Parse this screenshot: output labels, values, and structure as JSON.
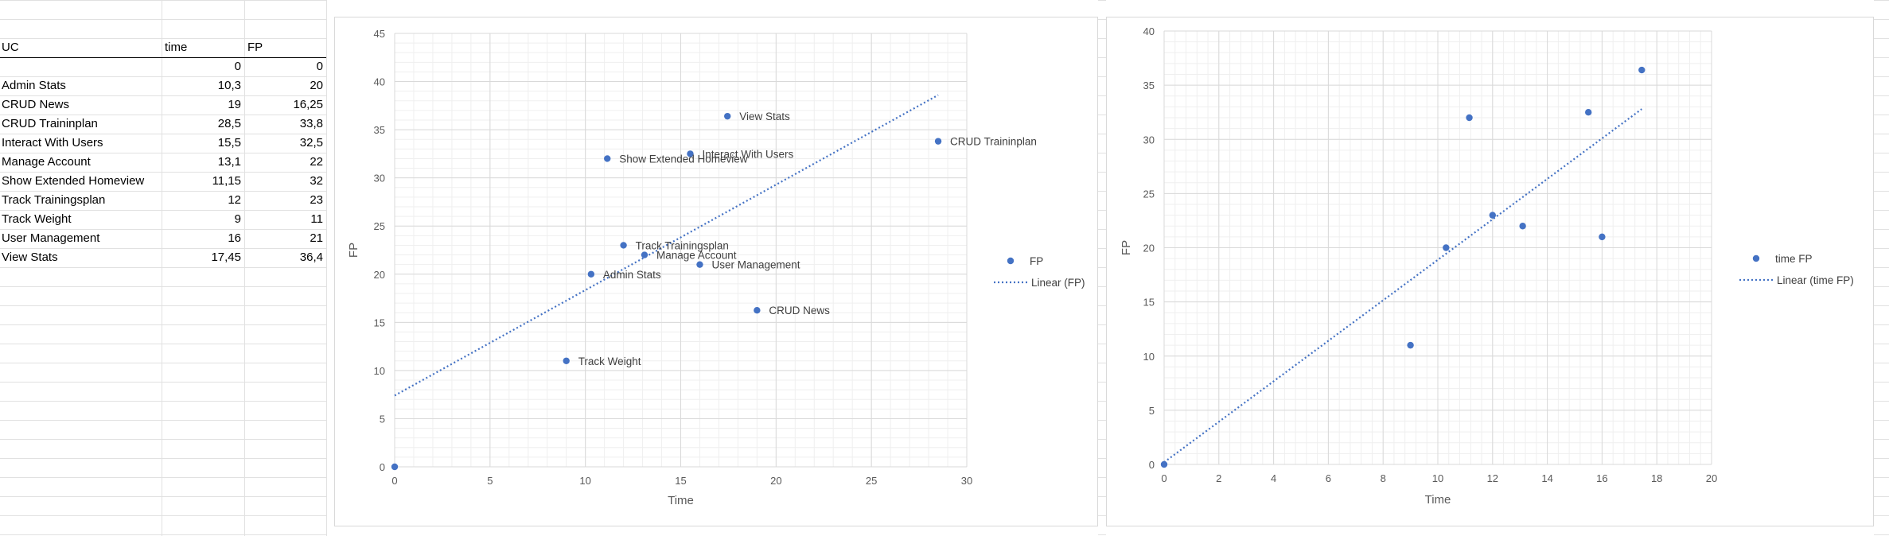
{
  "table": {
    "headers": [
      "UC",
      "time",
      "FP"
    ],
    "rows": [
      [
        "",
        "0",
        "0"
      ],
      [
        "Admin Stats",
        "10,3",
        "20"
      ],
      [
        "CRUD News",
        "19",
        "16,25"
      ],
      [
        "CRUD Traininplan",
        "28,5",
        "33,8"
      ],
      [
        "Interact With Users",
        "15,5",
        "32,5"
      ],
      [
        "Manage Account",
        "13,1",
        "22"
      ],
      [
        "Show Extended Homeview",
        "11,15",
        "32"
      ],
      [
        "Track Trainingsplan",
        "12",
        "23"
      ],
      [
        "Track Weight",
        "9",
        "11"
      ],
      [
        "User Management",
        "16",
        "21"
      ],
      [
        "View Stats",
        "17,45",
        "36,4"
      ]
    ]
  },
  "colors": {
    "series": "#4472c4",
    "grid_major": "#d9d9d9",
    "grid_minor": "#efefef",
    "axis_text": "#595959",
    "sheet_grid": "#e1e1e1"
  },
  "chart_data": [
    {
      "type": "scatter",
      "title": "",
      "xlabel": "Time",
      "ylabel": "FP",
      "xlim": [
        0,
        30
      ],
      "ylim": [
        0,
        45
      ],
      "xticks": [
        "0",
        "5",
        "10",
        "15",
        "20",
        "25",
        "30"
      ],
      "yticks": [
        "0",
        "5",
        "10",
        "15",
        "20",
        "25",
        "30",
        "35",
        "40",
        "45"
      ],
      "grid": true,
      "legend_position": "right",
      "legend": [
        "FP",
        "Linear (FP)"
      ],
      "series": [
        {
          "name": "FP",
          "points": [
            {
              "x": 0,
              "y": 0,
              "label": ""
            },
            {
              "x": 10.3,
              "y": 20,
              "label": "Admin Stats"
            },
            {
              "x": 19,
              "y": 16.25,
              "label": "CRUD News"
            },
            {
              "x": 28.5,
              "y": 33.8,
              "label": "CRUD Traininplan"
            },
            {
              "x": 15.5,
              "y": 32.5,
              "label": "Interact With Users"
            },
            {
              "x": 13.1,
              "y": 22,
              "label": "Manage Account"
            },
            {
              "x": 11.15,
              "y": 32,
              "label": "Show Extended Homeview"
            },
            {
              "x": 12,
              "y": 23,
              "label": "Track Trainingsplan"
            },
            {
              "x": 9,
              "y": 11,
              "label": "Track Weight"
            },
            {
              "x": 16,
              "y": 21,
              "label": "User Management"
            },
            {
              "x": 17.45,
              "y": 36.4,
              "label": "View Stats"
            }
          ]
        }
      ],
      "trendline": {
        "name": "Linear (FP)",
        "x0": 0,
        "y0": 7.4,
        "x1": 28.5,
        "y1": 38.6
      }
    },
    {
      "type": "scatter",
      "title": "",
      "xlabel": "Time",
      "ylabel": "FP",
      "xlim": [
        0,
        20
      ],
      "ylim": [
        0,
        40
      ],
      "xticks": [
        "0",
        "2",
        "4",
        "6",
        "8",
        "10",
        "12",
        "14",
        "16",
        "18",
        "20"
      ],
      "yticks": [
        "0",
        "5",
        "10",
        "15",
        "20",
        "25",
        "30",
        "35",
        "40"
      ],
      "grid": true,
      "legend_position": "right",
      "legend": [
        "time FP",
        "Linear (time FP)"
      ],
      "series": [
        {
          "name": "time FP",
          "points": [
            {
              "x": 0,
              "y": 0
            },
            {
              "x": 10.3,
              "y": 20
            },
            {
              "x": 9,
              "y": 11
            },
            {
              "x": 11.15,
              "y": 32
            },
            {
              "x": 12,
              "y": 23
            },
            {
              "x": 13.1,
              "y": 22
            },
            {
              "x": 15.5,
              "y": 32.5
            },
            {
              "x": 16,
              "y": 21
            },
            {
              "x": 17.45,
              "y": 36.4
            }
          ]
        }
      ],
      "trendline": {
        "name": "Linear (time FP)",
        "x0": 0,
        "y0": 0.2,
        "x1": 17.45,
        "y1": 32.8
      }
    }
  ]
}
